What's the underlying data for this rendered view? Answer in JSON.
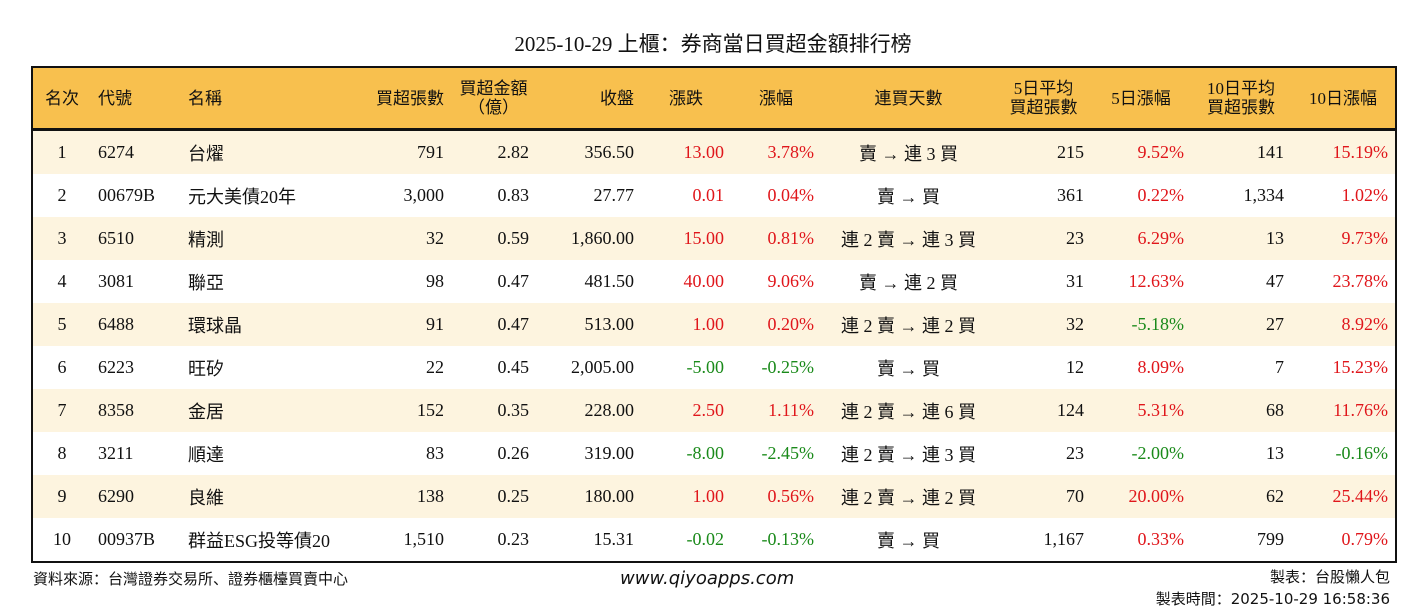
{
  "title": "2025-10-29 上櫃：券商當日買超金額排行榜",
  "colors": {
    "header_bg": "#f8c04e",
    "up": "#e0161b",
    "down": "#1a8a1a",
    "row_alt": "#fdf4df"
  },
  "headers": [
    "名次",
    "代號",
    "名稱",
    "買超張數",
    "買超金額\n（億）",
    "收盤",
    "漲跌",
    "漲幅",
    "連買天數",
    "5日平均\n買超張數",
    "5日漲幅",
    "10日平均\n買超張數",
    "10日漲幅"
  ],
  "rows": [
    [
      "1",
      "6274",
      "台燿",
      "791",
      "2.82",
      "356.50",
      "13.00",
      "3.78%",
      "賣 → 連 3 買",
      "215",
      "9.52%",
      "141",
      "15.19%"
    ],
    [
      "2",
      "00679B",
      "元大美債20年",
      "3,000",
      "0.83",
      "27.77",
      "0.01",
      "0.04%",
      "賣 → 買",
      "361",
      "0.22%",
      "1,334",
      "1.02%"
    ],
    [
      "3",
      "6510",
      "精測",
      "32",
      "0.59",
      "1,860.00",
      "15.00",
      "0.81%",
      "連 2 賣 → 連 3 買",
      "23",
      "6.29%",
      "13",
      "9.73%"
    ],
    [
      "4",
      "3081",
      "聯亞",
      "98",
      "0.47",
      "481.50",
      "40.00",
      "9.06%",
      "賣 → 連 2 買",
      "31",
      "12.63%",
      "47",
      "23.78%"
    ],
    [
      "5",
      "6488",
      "環球晶",
      "91",
      "0.47",
      "513.00",
      "1.00",
      "0.20%",
      "連 2 賣 → 連 2 買",
      "32",
      "-5.18%",
      "27",
      "8.92%"
    ],
    [
      "6",
      "6223",
      "旺矽",
      "22",
      "0.45",
      "2,005.00",
      "-5.00",
      "-0.25%",
      "賣 → 買",
      "12",
      "8.09%",
      "7",
      "15.23%"
    ],
    [
      "7",
      "8358",
      "金居",
      "152",
      "0.35",
      "228.00",
      "2.50",
      "1.11%",
      "連 2 賣 → 連 6 買",
      "124",
      "5.31%",
      "68",
      "11.76%"
    ],
    [
      "8",
      "3211",
      "順達",
      "83",
      "0.26",
      "319.00",
      "-8.00",
      "-2.45%",
      "連 2 賣 → 連 3 買",
      "23",
      "-2.00%",
      "13",
      "-0.16%"
    ],
    [
      "9",
      "6290",
      "良維",
      "138",
      "0.25",
      "180.00",
      "1.00",
      "0.56%",
      "連 2 賣 → 連 2 買",
      "70",
      "20.00%",
      "62",
      "25.44%"
    ],
    [
      "10",
      "00937B",
      "群益ESG投等債20",
      "1,510",
      "0.23",
      "15.31",
      "-0.02",
      "-0.13%",
      "賣 → 買",
      "1,167",
      "0.33%",
      "799",
      "0.79%"
    ]
  ],
  "footer": {
    "source": "資料來源：台灣證券交易所、證券櫃檯買賣中心",
    "website": "www.qiyoapps.com",
    "maker": "製表：台股懶人包",
    "time": "製表時間：2025-10-29 16:58:36"
  }
}
